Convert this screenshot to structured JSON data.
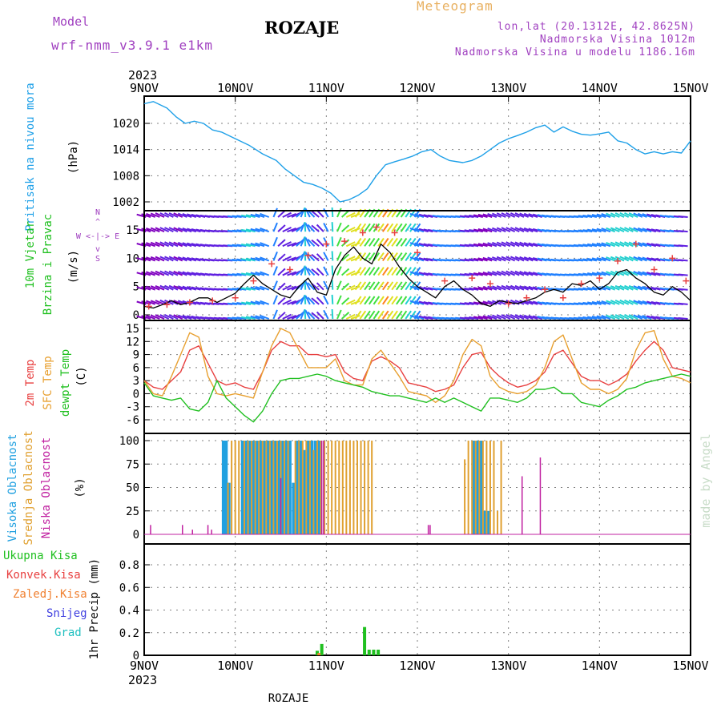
{
  "header": {
    "model_label": "Model",
    "model_name": "wrf-nmm_v3.9.1 e1km",
    "station": "ROZAJE",
    "product": "Meteogram",
    "coords": "lon,lat (20.1312E, 42.8625N)",
    "elevation": "Nadmorska Visina 1012m",
    "model_elevation": "Nadmorska Visina u modelu 1186.16m",
    "footer_station": "ROZAJE",
    "watermark": "made by Angel"
  },
  "colors": {
    "pressure": "#1ea0e8",
    "wind_label": "#20c020",
    "temp2m": "#e84040",
    "sfc_temp": "#e8a030",
    "dewpt": "#20c020",
    "cloud_high": "#20a0e0",
    "cloud_mid": "#e0a030",
    "cloud_low": "#c020a0",
    "precip_total": "#20c020",
    "precip_conv": "#e84040",
    "precip_strat": "#f08030",
    "snow": "#4040e0",
    "hail": "#20c0c0",
    "frame": "#000000",
    "grid": "#808080"
  },
  "chart_data": [
    {
      "type": "line",
      "panel": "pressure",
      "ylabel": [
        "Pritisak na nivou mora",
        "(hPa)"
      ],
      "yticks": [
        1002,
        1008,
        1014,
        1020
      ],
      "ylim": [
        1000,
        1026
      ],
      "x_start_label": "9NOV 2023",
      "xticks": [
        "9NOV",
        "10NOV",
        "11NOV",
        "12NOV",
        "13NOV",
        "14NOV",
        "15NOV"
      ],
      "x_start_top": "2023",
      "series": [
        {
          "key": "mslp",
          "days": [
            0,
            0.1,
            0.25,
            0.35,
            0.45,
            0.55,
            0.65,
            0.75,
            0.85,
            1.0,
            1.15,
            1.3,
            1.45,
            1.55,
            1.65,
            1.75,
            1.85,
            1.95,
            2.05,
            2.15,
            2.25,
            2.35,
            2.45,
            2.55,
            2.65,
            2.75,
            2.85,
            2.95,
            3.05,
            3.15,
            3.25,
            3.35,
            3.5,
            3.6,
            3.7,
            3.8,
            3.9,
            4.0,
            4.1,
            4.2,
            4.3,
            4.4,
            4.5,
            4.6,
            4.7,
            4.8,
            4.9,
            5.0,
            5.1,
            5.2,
            5.3,
            5.4,
            5.5,
            5.6,
            5.7,
            5.8,
            5.9,
            6.0
          ],
          "values": [
            1024.5,
            1025,
            1023.5,
            1021.5,
            1020,
            1020.5,
            1020,
            1018.5,
            1018,
            1016.5,
            1015,
            1013,
            1011.5,
            1009.5,
            1008,
            1006.5,
            1006,
            1005.2,
            1004,
            1002,
            1002.5,
            1003.5,
            1005,
            1008,
            1010.5,
            1011.2,
            1011.8,
            1012.5,
            1013.5,
            1014,
            1012.5,
            1011.5,
            1011,
            1011.5,
            1012.5,
            1014,
            1015.5,
            1016.5,
            1017.2,
            1018,
            1019,
            1019.6,
            1018,
            1019.2,
            1018.2,
            1017.5,
            1017.3,
            1017.6,
            1018,
            1016,
            1015.5,
            1014,
            1013,
            1013.5,
            1013,
            1013.5,
            1013.2,
            1016
          ]
        }
      ]
    },
    {
      "type": "line",
      "panel": "wind",
      "ylabel": [
        "10m Vjetar",
        "Brzina i Pravac",
        "(m/s)"
      ],
      "compass": [
        "N",
        "S",
        "W",
        "E"
      ],
      "yticks": [
        0,
        5,
        10,
        15
      ],
      "ylim": [
        0,
        18
      ],
      "series": [
        {
          "key": "wind_speed",
          "days": [
            0,
            0.1,
            0.2,
            0.3,
            0.4,
            0.5,
            0.6,
            0.7,
            0.8,
            0.9,
            1.0,
            1.1,
            1.2,
            1.3,
            1.4,
            1.5,
            1.6,
            1.7,
            1.8,
            1.9,
            2.0,
            2.1,
            2.2,
            2.3,
            2.4,
            2.5,
            2.6,
            2.7,
            2.8,
            2.9,
            3.0,
            3.1,
            3.2,
            3.3,
            3.4,
            3.5,
            3.6,
            3.7,
            3.8,
            3.9,
            4.0,
            4.1,
            4.2,
            4.3,
            4.4,
            4.5,
            4.6,
            4.7,
            4.8,
            4.9,
            5.0,
            5.1,
            5.2,
            5.3,
            5.4,
            5.5,
            5.6,
            5.7,
            5.8,
            5.9,
            6.0
          ],
          "values": [
            1.5,
            1.2,
            1.8,
            2.5,
            1.8,
            2.2,
            3.0,
            3.0,
            2.2,
            3.0,
            3.8,
            5.5,
            7.0,
            5.5,
            4.5,
            3.5,
            3.0,
            5.0,
            6.5,
            4.0,
            3.5,
            8.0,
            10.5,
            12.0,
            10.0,
            9.0,
            12.5,
            11.0,
            8.5,
            6.5,
            5.0,
            4.0,
            3.0,
            5.0,
            6.0,
            4.5,
            3.5,
            2.0,
            1.5,
            2.5,
            2.2,
            2.0,
            2.5,
            3.0,
            4.0,
            4.5,
            4.0,
            5.5,
            5.2,
            6.0,
            4.5,
            5.5,
            7.5,
            8.0,
            6.5,
            5.5,
            4.0,
            3.5,
            5.0,
            4.0,
            2.5
          ]
        },
        {
          "key": "wind_gust",
          "days": [
            0.05,
            0.25,
            0.5,
            0.75,
            1.0,
            1.2,
            1.4,
            1.6,
            1.8,
            2.0,
            2.2,
            2.4,
            2.55,
            2.75,
            3.0,
            3.3,
            3.6,
            3.8,
            4.0,
            4.2,
            4.4,
            4.6,
            4.8,
            5.0,
            5.2,
            5.4,
            5.6,
            5.8,
            5.95
          ],
          "values": [
            1.5,
            1.8,
            2.2,
            2.5,
            3.0,
            6.0,
            9.0,
            8.0,
            10.5,
            12.5,
            13.0,
            14.5,
            15.5,
            14.5,
            11.0,
            6.0,
            6.5,
            5.5,
            2.0,
            3.0,
            4.5,
            3.0,
            5.5,
            6.5,
            9.5,
            12.5,
            8.0,
            10.0,
            6.0
          ]
        }
      ]
    },
    {
      "type": "line",
      "panel": "temperature",
      "ylabel": [
        "2m Temp",
        "SFC Temp",
        "dewpt Temp",
        "(C)"
      ],
      "yticks": [
        -6,
        -3,
        0,
        3,
        6,
        9,
        12,
        15
      ],
      "ylim": [
        -8,
        16.5
      ],
      "series": [
        {
          "name": "2m Temp",
          "key": "t2m",
          "days": [
            0,
            0.1,
            0.2,
            0.3,
            0.4,
            0.5,
            0.6,
            0.7,
            0.8,
            0.9,
            1.0,
            1.1,
            1.2,
            1.3,
            1.4,
            1.5,
            1.6,
            1.7,
            1.8,
            1.9,
            2.0,
            2.1,
            2.2,
            2.3,
            2.4,
            2.5,
            2.6,
            2.7,
            2.8,
            2.9,
            3.0,
            3.1,
            3.2,
            3.3,
            3.4,
            3.5,
            3.6,
            3.7,
            3.8,
            3.9,
            4.0,
            4.1,
            4.2,
            4.3,
            4.4,
            4.5,
            4.6,
            4.7,
            4.8,
            4.9,
            5.0,
            5.1,
            5.2,
            5.3,
            5.4,
            5.5,
            5.6,
            5.7,
            5.8,
            5.9,
            6.0
          ],
          "values": [
            3,
            1.5,
            1,
            3,
            5,
            10,
            11,
            7,
            3,
            2,
            2.5,
            1.5,
            1,
            5,
            10,
            12,
            11,
            11,
            9,
            9,
            8.5,
            9,
            5,
            3.5,
            3,
            7.5,
            8.5,
            7.5,
            6,
            2.5,
            2,
            1.5,
            0.5,
            1,
            2,
            6,
            9,
            9.5,
            6,
            4,
            2.5,
            1.5,
            2,
            3,
            5,
            9,
            10,
            7,
            4,
            3,
            3,
            2,
            3,
            4.5,
            7.5,
            10,
            12,
            10,
            6,
            5.5,
            5
          ]
        },
        {
          "name": "SFC Temp",
          "key": "tsfc",
          "days": [
            0,
            0.1,
            0.2,
            0.3,
            0.4,
            0.5,
            0.6,
            0.7,
            0.8,
            0.9,
            1.0,
            1.1,
            1.2,
            1.3,
            1.4,
            1.5,
            1.6,
            1.7,
            1.8,
            1.9,
            2.0,
            2.1,
            2.2,
            2.3,
            2.4,
            2.5,
            2.6,
            2.7,
            2.8,
            2.9,
            3.0,
            3.1,
            3.2,
            3.3,
            3.4,
            3.5,
            3.6,
            3.7,
            3.8,
            3.9,
            4.0,
            4.1,
            4.2,
            4.3,
            4.4,
            4.5,
            4.6,
            4.7,
            4.8,
            4.9,
            5.0,
            5.1,
            5.2,
            5.3,
            5.4,
            5.5,
            5.6,
            5.7,
            5.8,
            5.9,
            6.0
          ],
          "values": [
            3,
            0,
            -0.5,
            4,
            9,
            14,
            13,
            4,
            0,
            -0.5,
            0,
            -0.5,
            -1,
            5,
            11,
            15,
            14,
            10,
            6,
            6,
            6,
            8,
            3,
            2,
            2,
            8,
            10,
            7,
            4,
            0.5,
            0,
            -0.5,
            -2,
            -0.5,
            3,
            9,
            12.5,
            11,
            4,
            1.5,
            0.5,
            0,
            0.5,
            2,
            6,
            12,
            13.5,
            8,
            2.5,
            1,
            1,
            0,
            1,
            3.5,
            10,
            14,
            14.5,
            8,
            4,
            3.5,
            2.5
          ]
        },
        {
          "name": "dewpt Temp",
          "key": "td",
          "days": [
            0,
            0.1,
            0.2,
            0.3,
            0.4,
            0.5,
            0.6,
            0.7,
            0.8,
            0.9,
            1.0,
            1.1,
            1.2,
            1.3,
            1.4,
            1.5,
            1.6,
            1.7,
            1.8,
            1.9,
            2.0,
            2.1,
            2.2,
            2.3,
            2.4,
            2.5,
            2.6,
            2.7,
            2.8,
            2.9,
            3.0,
            3.1,
            3.2,
            3.3,
            3.4,
            3.5,
            3.6,
            3.7,
            3.8,
            3.9,
            4.0,
            4.1,
            4.2,
            4.3,
            4.4,
            4.5,
            4.6,
            4.7,
            4.8,
            4.9,
            5.0,
            5.1,
            5.2,
            5.3,
            5.4,
            5.5,
            5.6,
            5.7,
            5.8,
            5.9,
            6.0
          ],
          "values": [
            2.5,
            -0.5,
            -1,
            -1.5,
            -1,
            -3.5,
            -4,
            -2,
            3,
            -1,
            -3,
            -5,
            -6.5,
            -4,
            0,
            3,
            3.5,
            3.5,
            4,
            4.5,
            4,
            3,
            2.5,
            2,
            1.5,
            0.5,
            0,
            -0.5,
            -0.5,
            -1,
            -1.5,
            -2,
            -1,
            -2,
            -1,
            -2,
            -3,
            -4,
            -1,
            -1,
            -1.5,
            -2,
            -1,
            1,
            1,
            1.5,
            0,
            0,
            -2,
            -2.5,
            -3,
            -1.5,
            -0.5,
            1,
            1.5,
            2.5,
            3,
            3.5,
            4,
            4.5,
            4
          ]
        }
      ]
    },
    {
      "type": "bar",
      "panel": "clouds",
      "ylabel": [
        "Visoka Oblacnost",
        "Srednja Oblacnost",
        "Niska Oblacnost",
        "(%)"
      ],
      "yticks": [
        0,
        25,
        50,
        75,
        100
      ],
      "ylim": [
        0,
        100
      ],
      "series": [
        {
          "name": "Visoka Oblacnost",
          "key": "high",
          "days": [
            0.87,
            0.9,
            0.93,
            1.08,
            1.12,
            1.16,
            1.2,
            1.24,
            1.28,
            1.32,
            1.36,
            1.4,
            1.44,
            1.48,
            1.52,
            1.56,
            1.6,
            1.64,
            1.68,
            1.72,
            1.76,
            1.8,
            1.84,
            1.88,
            1.92,
            3.62,
            3.66,
            3.7,
            3.74,
            3.78
          ],
          "values": [
            100,
            100,
            55,
            100,
            100,
            100,
            100,
            100,
            100,
            100,
            100,
            100,
            100,
            100,
            100,
            100,
            100,
            55,
            100,
            100,
            90,
            100,
            100,
            100,
            100,
            100,
            100,
            100,
            25,
            25
          ]
        },
        {
          "name": "Srednja Oblacnost",
          "key": "mid",
          "days": [
            0.92,
            0.96,
            1.0,
            1.04,
            1.1,
            1.14,
            1.18,
            1.22,
            1.26,
            1.3,
            1.34,
            1.38,
            1.42,
            1.46,
            1.5,
            1.54,
            1.58,
            1.66,
            1.7,
            1.74,
            1.78,
            1.82,
            1.86,
            1.9,
            1.94,
            1.98,
            2.02,
            2.06,
            2.1,
            2.14,
            2.18,
            2.22,
            2.26,
            2.3,
            2.34,
            2.38,
            2.42,
            2.46,
            2.5,
            3.52,
            3.56,
            3.6,
            3.64,
            3.68,
            3.72,
            3.76,
            3.8,
            3.84,
            3.88,
            3.92
          ],
          "values": [
            55,
            100,
            100,
            100,
            100,
            100,
            100,
            100,
            100,
            100,
            100,
            100,
            100,
            100,
            100,
            100,
            100,
            100,
            100,
            100,
            100,
            100,
            90,
            100,
            100,
            100,
            100,
            100,
            100,
            100,
            100,
            100,
            100,
            100,
            100,
            100,
            100,
            100,
            100,
            80,
            100,
            100,
            100,
            100,
            100,
            100,
            100,
            100,
            25,
            100
          ]
        },
        {
          "name": "Niska Oblacnost",
          "key": "low",
          "days": [
            0.07,
            0.42,
            0.53,
            0.7,
            0.74,
            1.5,
            1.95,
            1.97,
            3.12,
            3.14,
            4.15,
            4.35
          ],
          "values": [
            10,
            10,
            5,
            10,
            5,
            60,
            100,
            100,
            10,
            10,
            62,
            82
          ]
        }
      ]
    },
    {
      "type": "bar",
      "panel": "precip",
      "ylabel": [
        "1hr Precip (mm)"
      ],
      "legend": [
        "Ukupna Kisa",
        "Konvek.Kisa",
        "Zaledj.Kisa",
        "Snijeg",
        "Grad"
      ],
      "yticks": [
        0,
        0.2,
        0.4,
        0.6,
        0.8
      ],
      "ylim": [
        0,
        0.96
      ],
      "xticks": [
        "9NOV",
        "10NOV",
        "11NOV",
        "12NOV",
        "13NOV",
        "14NOV",
        "15NOV"
      ],
      "x_start_bottom": "2023",
      "series": [
        {
          "name": "Ukupna Kisa",
          "key": "total",
          "days": [
            1.9,
            1.95,
            2.42,
            2.47,
            2.52,
            2.57
          ],
          "values": [
            0.04,
            0.1,
            0.25,
            0.05,
            0.05,
            0.05
          ]
        },
        {
          "name": "Zaledj.Kisa",
          "key": "frz",
          "days": [
            1.92
          ],
          "values": [
            0.02
          ]
        }
      ]
    }
  ]
}
